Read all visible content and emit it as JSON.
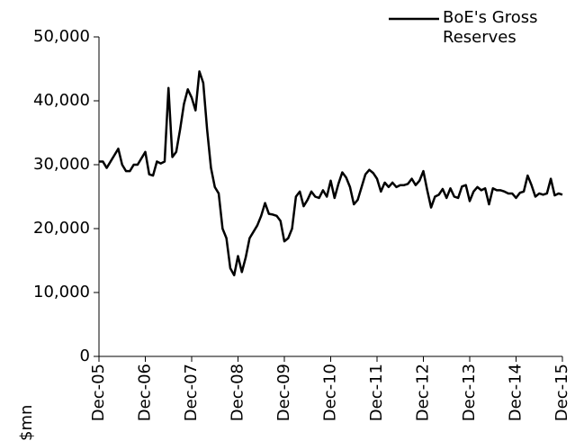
{
  "chart_data": {
    "type": "line",
    "y_label": "$mn",
    "categories": [
      "Dec-05",
      null,
      null,
      null,
      null,
      null,
      null,
      null,
      null,
      null,
      null,
      null,
      "Dec-06",
      null,
      null,
      null,
      null,
      null,
      null,
      null,
      null,
      null,
      null,
      null,
      "Dec-07",
      null,
      null,
      null,
      null,
      null,
      null,
      null,
      null,
      null,
      null,
      null,
      "Dec-08",
      null,
      null,
      null,
      null,
      null,
      null,
      null,
      null,
      null,
      null,
      null,
      "Dec-09",
      null,
      null,
      null,
      null,
      null,
      null,
      null,
      null,
      null,
      null,
      null,
      "Dec-10",
      null,
      null,
      null,
      null,
      null,
      null,
      null,
      null,
      null,
      null,
      null,
      "Dec-11",
      null,
      null,
      null,
      null,
      null,
      null,
      null,
      null,
      null,
      null,
      null,
      "Dec-12",
      null,
      null,
      null,
      null,
      null,
      null,
      null,
      null,
      null,
      null,
      null,
      "Dec-13",
      null,
      null,
      null,
      null,
      null,
      null,
      null,
      null,
      null,
      null,
      null,
      "Dec-14",
      null,
      null,
      null,
      null,
      null,
      null,
      null,
      null,
      null,
      null,
      null,
      "Dec-15"
    ],
    "series": [
      {
        "name": "BoE's Gross Reserves",
        "color": "#000000",
        "values": [
          30500,
          30500,
          29500,
          30500,
          31500,
          32500,
          30000,
          29000,
          29000,
          30000,
          30000,
          31000,
          32000,
          28500,
          28300,
          30500,
          30200,
          30500,
          42000,
          31200,
          32000,
          35500,
          39500,
          41800,
          40500,
          38500,
          44600,
          42800,
          35500,
          29500,
          26500,
          25500,
          20000,
          18500,
          13800,
          12700,
          15700,
          13200,
          15500,
          18500,
          19500,
          20500,
          22000,
          24000,
          22300,
          22200,
          22000,
          21200,
          18000,
          18500,
          20000,
          25000,
          25800,
          23500,
          24500,
          25800,
          25000,
          24800,
          26000,
          25000,
          27500,
          24800,
          27000,
          28800,
          28000,
          26500,
          23800,
          24500,
          26500,
          28500,
          29200,
          28700,
          27800,
          25800,
          27200,
          26500,
          27200,
          26500,
          26800,
          26800,
          27000,
          27800,
          26800,
          27500,
          29000,
          26000,
          23300,
          25000,
          25300,
          26200,
          24800,
          26300,
          25000,
          24800,
          26600,
          26800,
          24300,
          25800,
          26500,
          26000,
          26300,
          23800,
          26300,
          26000,
          26000,
          25800,
          25500,
          25500,
          24800,
          25600,
          25800,
          28300,
          26800,
          25000,
          25500,
          25300,
          25500,
          27800,
          25200,
          25500,
          25300
        ]
      }
    ],
    "ylim": [
      0,
      50000
    ],
    "yticks": [
      0,
      {
        "value": 10000,
        "label": "10,000"
      },
      {
        "value": 20000,
        "label": "20,000"
      },
      {
        "value": 30000,
        "label": "30,000"
      },
      {
        "value": 40000,
        "label": "40,000"
      },
      {
        "value": 50000,
        "label": "50,000"
      }
    ],
    "grid": false,
    "legend": "top-right"
  }
}
